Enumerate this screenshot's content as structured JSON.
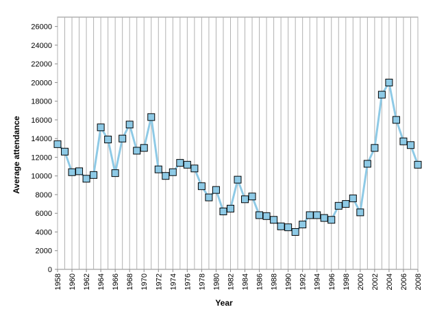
{
  "chart_data": {
    "type": "line",
    "title": "",
    "xlabel": "Year",
    "ylabel": "Average attendance",
    "xlim": [
      1958,
      2008
    ],
    "ylim": [
      0,
      27000
    ],
    "y_ticks": [
      0,
      2000,
      4000,
      6000,
      8000,
      10000,
      12000,
      14000,
      16000,
      18000,
      20000,
      22000,
      24000,
      26000
    ],
    "x_tick_labels": [
      "1958",
      "1960",
      "1962",
      "1964",
      "1966",
      "1968",
      "1970",
      "1972",
      "1974",
      "1976",
      "1978",
      "1980",
      "1982",
      "1984",
      "1986",
      "1988",
      "1990",
      "1992",
      "1994",
      "1996",
      "1998",
      "2000",
      "2002",
      "2004",
      "2006",
      "2008"
    ],
    "grid": "vertical",
    "line_color": "#8ecae6",
    "marker_color": "#8ecae6",
    "series": [
      {
        "x": [
          1958,
          1959,
          1960,
          1961,
          1962,
          1963,
          1964,
          1965,
          1966,
          1967,
          1968,
          1969,
          1970,
          1971,
          1972,
          1973,
          1974,
          1975,
          1976,
          1977,
          1978,
          1979,
          1980,
          1981,
          1982,
          1983,
          1984,
          1985,
          1986,
          1987,
          1988,
          1989,
          1990,
          1991,
          1992,
          1993,
          1994,
          1995,
          1996,
          1997,
          1998,
          1999,
          2000,
          2001,
          2002,
          2003,
          2004,
          2005,
          2006,
          2007,
          2008
        ],
        "values": [
          13400,
          12600,
          10400,
          10500,
          9700,
          10100,
          15200,
          13900,
          10300,
          14000,
          15500,
          12700,
          13000,
          16300,
          10700,
          10000,
          10400,
          11400,
          11200,
          10800,
          8900,
          7700,
          8500,
          6200,
          6500,
          9600,
          7500,
          7800,
          5800,
          5700,
          5300,
          4600,
          4500,
          4000,
          4800,
          5800,
          5800,
          5500,
          5300,
          6800,
          7000,
          7600,
          6100,
          11300,
          13000,
          18700,
          20000,
          16000,
          13700,
          13300,
          11200
        ]
      }
    ]
  }
}
